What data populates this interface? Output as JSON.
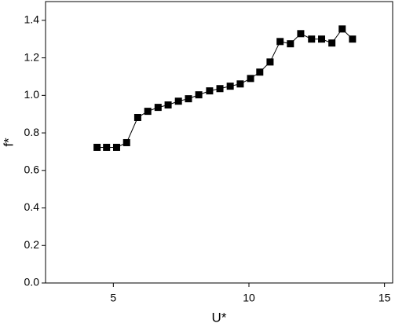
{
  "chart_data": {
    "type": "line",
    "x_label": "U*",
    "y_label": "f*",
    "x": [
      4.4,
      4.75,
      5.12,
      5.49,
      5.9,
      6.27,
      6.65,
      7.02,
      7.4,
      7.77,
      8.15,
      8.55,
      8.93,
      9.31,
      9.68,
      10.06,
      10.4,
      10.78,
      11.15,
      11.53,
      11.91,
      12.31,
      12.68,
      13.06,
      13.44,
      13.82
    ],
    "series": [
      {
        "color": "#000000",
        "values": [
          0.723,
          0.723,
          0.723,
          0.748,
          0.882,
          0.915,
          0.936,
          0.949,
          0.969,
          0.982,
          1.003,
          1.024,
          1.036,
          1.049,
          1.061,
          1.09,
          1.124,
          1.178,
          1.287,
          1.275,
          1.329,
          1.3,
          1.3,
          1.279,
          1.354,
          1.3
        ]
      }
    ],
    "xlim": [
      2.5,
      15.3
    ],
    "ylim": [
      0,
      1.5
    ],
    "xticks": [
      5,
      10,
      15
    ],
    "yticks": [
      {
        "value": 0,
        "label": "0.0"
      },
      {
        "value": 0.2,
        "label": "0.2"
      },
      {
        "value": 0.4,
        "label": "0.4"
      },
      {
        "value": 0.6,
        "label": "0.6"
      },
      {
        "value": 0.8,
        "label": "0.8"
      },
      {
        "value": 1.0,
        "label": "1.0"
      },
      {
        "value": 1.2,
        "label": "1.2"
      },
      {
        "value": 1.4,
        "label": "1.4"
      }
    ],
    "grid": false
  }
}
